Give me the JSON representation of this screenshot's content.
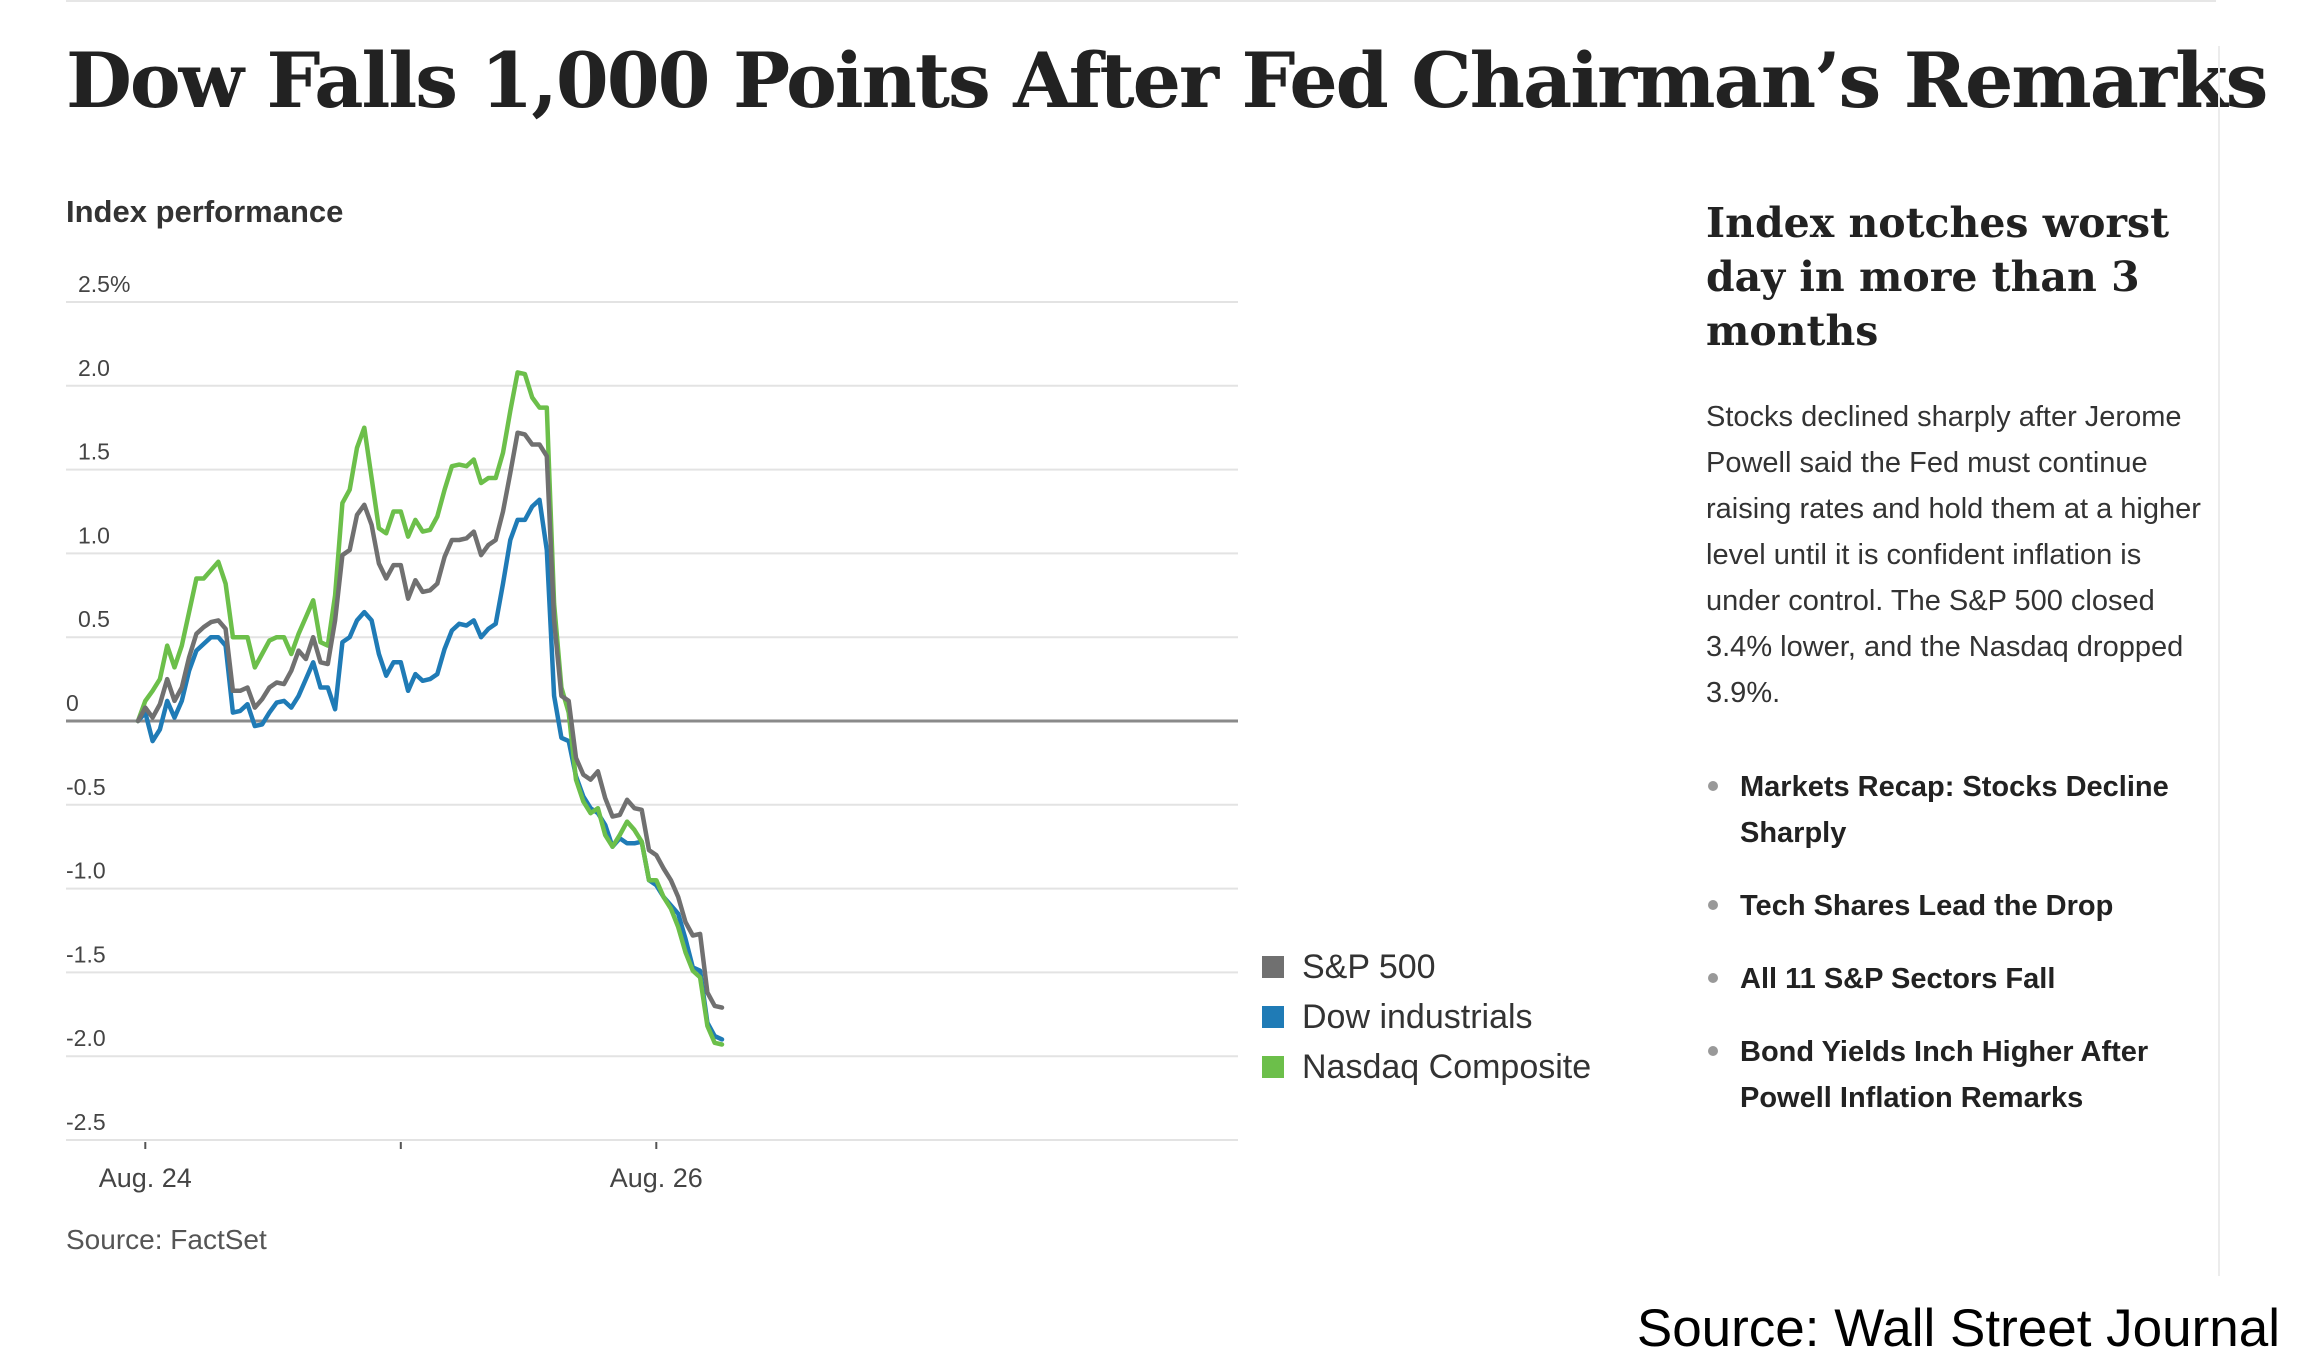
{
  "headline": "Dow Falls 1,000 Points After Fed Chairman’s Remarks",
  "chart_subtitle": "Index performance",
  "source_small": "Source: FactSet",
  "aside": {
    "title": "Index notches worst day in more than 3 months",
    "body": "Stocks declined sharply after Jerome Powell said the Fed must continue raising rates and hold them at a higher level until it is confident inflation is under control. The S&P 500 closed 3.4% lower, and the Nasdaq dropped 3.9%.",
    "links": [
      "Markets Recap: Stocks Decline Sharply",
      "Tech Shares Lead the Drop",
      "All 11 S&P Sectors Fall",
      "Bond Yields Inch Higher After Powell Inflation Remarks"
    ]
  },
  "credit": "Source: Wall Street Journal",
  "colors": {
    "sp500": "#707070",
    "dow": "#1f7bb6",
    "nasdaq": "#6cbf4a",
    "grid": "#e3e3e3",
    "zero_line": "#8a8a8a"
  },
  "chart_data": {
    "type": "line",
    "ylim": [
      -2.5,
      2.5
    ],
    "yticks": [
      2.5,
      2.0,
      1.5,
      1.0,
      0.5,
      0,
      -0.5,
      -1.0,
      -1.5,
      -2.0,
      -2.5
    ],
    "ytick_labels": [
      "2.5%",
      "2.0",
      "1.5",
      "1.0",
      "0.5",
      "0",
      "-0.5",
      "-1.0",
      "-1.5",
      "-2.0",
      "-2.5"
    ],
    "xtick_labels": [
      {
        "label": "Aug. 24",
        "index": 1
      },
      {
        "label": "",
        "index": 36
      },
      {
        "label": "Aug. 26",
        "index": 71
      }
    ],
    "legend": [
      "S&P 500",
      "Dow industrials",
      "Nasdaq Composite"
    ],
    "series": [
      {
        "name": "S&P 500",
        "values": [
          0,
          0.08,
          0.02,
          0.1,
          0.25,
          0.12,
          0.2,
          0.38,
          0.52,
          0.56,
          0.59,
          0.6,
          0.55,
          0.18,
          0.18,
          0.2,
          0.08,
          0.13,
          0.2,
          0.23,
          0.22,
          0.3,
          0.42,
          0.37,
          0.5,
          0.35,
          0.34,
          0.6,
          0.99,
          1.02,
          1.23,
          1.29,
          1.17,
          0.94,
          0.85,
          0.93,
          0.93,
          0.73,
          0.84,
          0.77,
          0.78,
          0.82,
          0.98,
          1.08,
          1.08,
          1.09,
          1.13,
          0.99,
          1.05,
          1.08,
          1.25,
          1.48,
          1.72,
          1.71,
          1.65,
          1.65,
          1.58,
          0.6,
          0.15,
          0.12,
          -0.22,
          -0.32,
          -0.35,
          -0.3,
          -0.46,
          -0.57,
          -0.56,
          -0.47,
          -0.52,
          -0.53,
          -0.77,
          -0.8,
          -0.88,
          -0.95,
          -1.05,
          -1.2,
          -1.28,
          -1.27,
          -1.62,
          -1.7,
          -1.71
        ]
      },
      {
        "name": "Dow industrials",
        "values": [
          0,
          0.05,
          -0.12,
          -0.05,
          0.12,
          0.02,
          0.12,
          0.3,
          0.42,
          0.46,
          0.5,
          0.5,
          0.45,
          0.05,
          0.06,
          0.1,
          -0.03,
          -0.02,
          0.05,
          0.11,
          0.12,
          0.08,
          0.15,
          0.25,
          0.35,
          0.2,
          0.2,
          0.07,
          0.47,
          0.5,
          0.6,
          0.65,
          0.6,
          0.4,
          0.27,
          0.35,
          0.35,
          0.18,
          0.28,
          0.24,
          0.25,
          0.28,
          0.43,
          0.54,
          0.58,
          0.57,
          0.6,
          0.5,
          0.55,
          0.58,
          0.82,
          1.08,
          1.2,
          1.2,
          1.28,
          1.32,
          1.02,
          0.15,
          -0.1,
          -0.12,
          -0.33,
          -0.45,
          -0.52,
          -0.55,
          -0.62,
          -0.75,
          -0.7,
          -0.73,
          -0.73,
          -0.72,
          -0.95,
          -0.98,
          -1.05,
          -1.1,
          -1.15,
          -1.3,
          -1.47,
          -1.49,
          -1.8,
          -1.88,
          -1.9
        ]
      },
      {
        "name": "Nasdaq Composite",
        "values": [
          0,
          0.12,
          0.18,
          0.25,
          0.45,
          0.32,
          0.45,
          0.65,
          0.85,
          0.85,
          0.9,
          0.95,
          0.82,
          0.5,
          0.5,
          0.5,
          0.32,
          0.4,
          0.48,
          0.5,
          0.5,
          0.4,
          0.52,
          0.62,
          0.72,
          0.47,
          0.45,
          0.75,
          1.3,
          1.38,
          1.63,
          1.75,
          1.45,
          1.15,
          1.12,
          1.25,
          1.25,
          1.1,
          1.2,
          1.13,
          1.14,
          1.22,
          1.38,
          1.52,
          1.53,
          1.52,
          1.56,
          1.42,
          1.45,
          1.45,
          1.6,
          1.85,
          2.08,
          2.07,
          1.93,
          1.87,
          1.87,
          0.7,
          0.2,
          0.05,
          -0.35,
          -0.48,
          -0.55,
          -0.52,
          -0.68,
          -0.75,
          -0.68,
          -0.6,
          -0.65,
          -0.72,
          -0.95,
          -0.95,
          -1.05,
          -1.12,
          -1.23,
          -1.38,
          -1.49,
          -1.53,
          -1.82,
          -1.92,
          -1.93
        ]
      }
    ]
  }
}
